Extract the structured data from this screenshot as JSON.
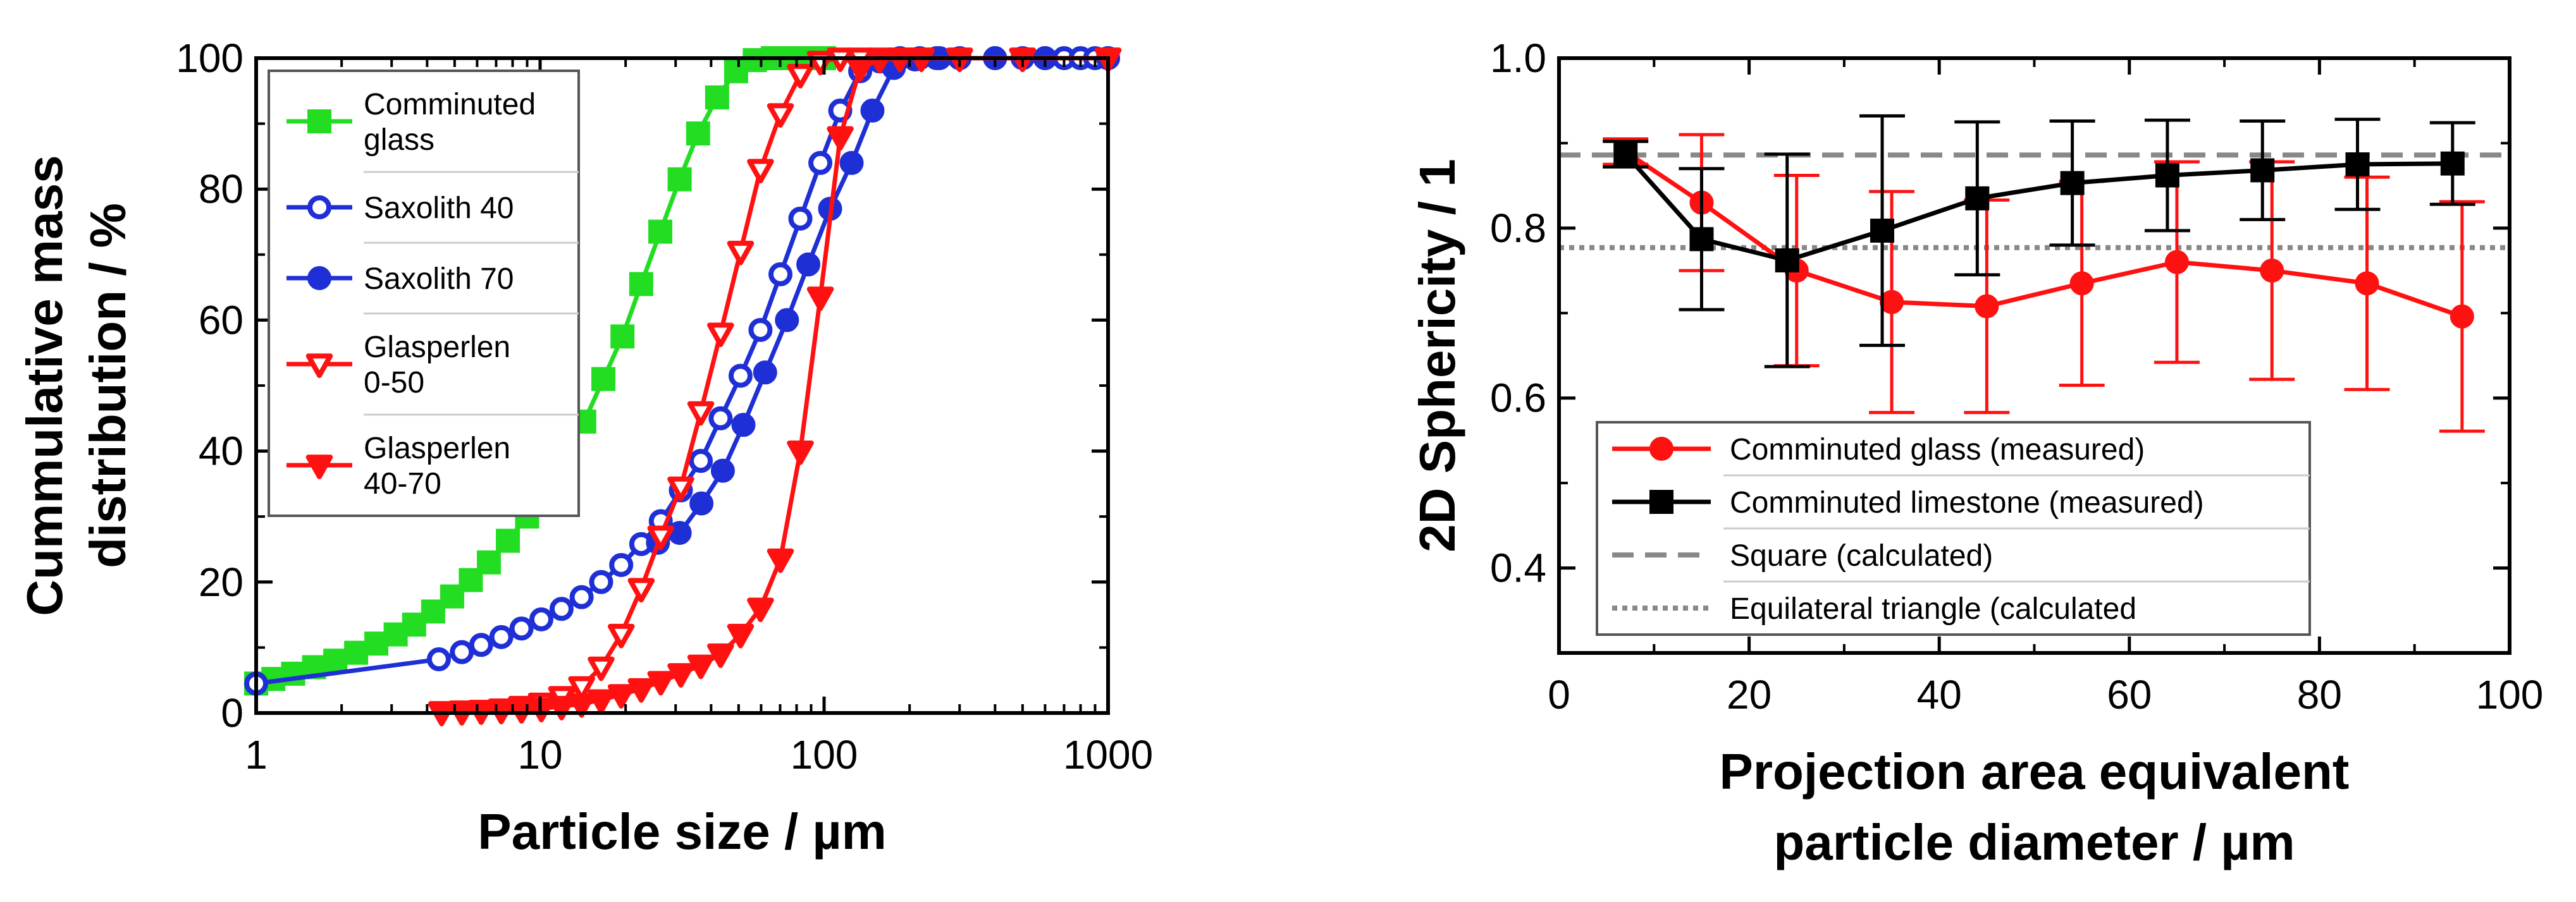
{
  "chart_data": [
    {
      "type": "line",
      "xscale": "log",
      "xlim": [
        1,
        1000
      ],
      "ylim": [
        0,
        100
      ],
      "xlabel": "Particle size / µm",
      "ylabel_lines": [
        "Cummulative mass",
        "distribution / %"
      ],
      "x_ticks": [
        1,
        10,
        100,
        1000
      ],
      "x_tick_labels": [
        "1",
        "10",
        "100",
        "1000"
      ],
      "y_ticks": [
        0,
        20,
        40,
        60,
        80,
        100
      ],
      "y_tick_labels": [
        "0",
        "20",
        "40",
        "60",
        "80",
        "100"
      ],
      "grid": false,
      "legend_position": "top-left",
      "series": [
        {
          "name_lines": [
            "Comminuted",
            "glass"
          ],
          "color": "#22dd22",
          "marker": "square",
          "filled": true,
          "x": [
            1,
            1.15,
            1.35,
            1.6,
            1.9,
            2.25,
            2.65,
            3.1,
            3.6,
            4.2,
            4.9,
            5.7,
            6.6,
            7.7,
            9,
            10.5,
            12.3,
            14.3,
            16.7,
            19.5,
            22.7,
            26.5,
            31,
            36,
            42,
            49,
            57,
            66,
            77,
            90,
            100
          ],
          "y": [
            4.5,
            5.2,
            6,
            7,
            8,
            9.2,
            10.6,
            12,
            13.5,
            15.5,
            17.8,
            20.3,
            23,
            26.3,
            30,
            34.5,
            39.5,
            44.5,
            51,
            57.5,
            65.5,
            73.5,
            81.5,
            88.5,
            94,
            98,
            99.7,
            100,
            100,
            100,
            100
          ]
        },
        {
          "name_lines": [
            "Saxolith 40"
          ],
          "color": "#1f2fd6",
          "marker": "circle",
          "filled": false,
          "x": [
            1,
            4.4,
            5.3,
            6.2,
            7.3,
            8.6,
            10.1,
            11.9,
            14,
            16.4,
            19.3,
            22.7,
            26.6,
            31.3,
            36.8,
            43.2,
            50.8,
            59.7,
            70.2,
            82.5,
            97,
            114,
            134,
            157,
            185,
            217,
            255,
            300,
            400,
            500,
            600,
            700,
            800,
            900,
            1000
          ],
          "y": [
            4.5,
            8.2,
            9.3,
            10.4,
            11.6,
            12.9,
            14.3,
            15.9,
            17.7,
            20,
            22.6,
            25.8,
            29.3,
            34,
            38.5,
            45,
            51.5,
            58.5,
            67,
            75.5,
            84,
            92,
            98,
            99.5,
            100,
            100,
            100,
            100,
            100,
            100,
            100,
            100,
            100,
            100,
            100
          ]
        },
        {
          "name_lines": [
            "Saxolith 70"
          ],
          "color": "#1f2fd6",
          "marker": "circle",
          "filled": true,
          "x": [
            26,
            31,
            37,
            44,
            52,
            62,
            74,
            88,
            105,
            125,
            148,
            176,
            209,
            249,
            400,
            600,
            1000
          ],
          "y": [
            26,
            27.5,
            32,
            37,
            44,
            52,
            60,
            68.5,
            77,
            84,
            92,
            98.5,
            99.8,
            100,
            100,
            100,
            100
          ]
        },
        {
          "name_lines": [
            "Glasperlen",
            "0-50"
          ],
          "color": "#ff1111",
          "marker": "triangle-down",
          "filled": false,
          "x": [
            4.5,
            5.3,
            6.2,
            7.3,
            8.6,
            10.1,
            11.9,
            14,
            16.4,
            19.3,
            22.7,
            26.6,
            31.3,
            36.8,
            43.2,
            50.8,
            59.7,
            70.2,
            82.5,
            97,
            114,
            134,
            157,
            185,
            220,
            300,
            500,
            1000
          ],
          "y": [
            0.2,
            0.3,
            0.4,
            0.6,
            1,
            1.5,
            2.5,
            4,
            7,
            12,
            19,
            27,
            34.5,
            46,
            58,
            70.5,
            83,
            91.5,
            97.5,
            99.5,
            100,
            100,
            100,
            100,
            100,
            100,
            100,
            100
          ]
        },
        {
          "name_lines": [
            "Glasperlen",
            "40-70"
          ],
          "color": "#ff1111",
          "marker": "triangle-down",
          "filled": true,
          "x": [
            4.5,
            5.3,
            6.2,
            7.3,
            8.6,
            10.1,
            11.9,
            14,
            16.4,
            19.3,
            22.7,
            26.6,
            31.3,
            36.8,
            43.2,
            50.8,
            59.7,
            70.2,
            82.5,
            97,
            114,
            134,
            157,
            185,
            220,
            300,
            500,
            1000
          ],
          "y": [
            0.1,
            0.2,
            0.3,
            0.4,
            0.5,
            0.7,
            1,
            1.4,
            2,
            2.8,
            3.7,
            4.8,
            6,
            7.3,
            9,
            12,
            16,
            23.5,
            40,
            63.5,
            88,
            98.5,
            99.8,
            100,
            100,
            100,
            100,
            100
          ]
        }
      ]
    },
    {
      "type": "line",
      "xlim": [
        0,
        100
      ],
      "ylim": [
        0.3,
        1.0
      ],
      "xlabel_lines": [
        "Projection area equivalent",
        "particle diameter / µm"
      ],
      "ylabel": "2D Sphericity / 1",
      "x_ticks": [
        0,
        20,
        40,
        60,
        80,
        100
      ],
      "x_tick_labels": [
        "0",
        "20",
        "40",
        "60",
        "80",
        "100"
      ],
      "y_ticks": [
        0.4,
        0.6,
        0.8,
        1.0
      ],
      "y_tick_labels": [
        "0.4",
        "0.6",
        "0.8",
        "1.0"
      ],
      "grid": false,
      "legend_position": "bottom-center",
      "series": [
        {
          "name": "Comminuted glass (measured)",
          "color": "#ff1111",
          "marker": "circle",
          "filled": true,
          "x": [
            7,
            15,
            25,
            35,
            45,
            55,
            65,
            75,
            85,
            95
          ],
          "y": [
            0.89,
            0.83,
            0.75,
            0.713,
            0.708,
            0.735,
            0.76,
            0.75,
            0.735,
            0.696
          ],
          "err": [
            0.015,
            0.08,
            0.112,
            0.13,
            0.125,
            0.12,
            0.118,
            0.128,
            0.125,
            0.135
          ]
        },
        {
          "name": "Comminuted limestone (measured)",
          "color": "#000000",
          "marker": "square",
          "filled": true,
          "x": [
            7,
            15,
            24,
            34,
            44,
            54,
            64,
            74,
            84,
            94
          ],
          "y": [
            0.887,
            0.787,
            0.762,
            0.797,
            0.835,
            0.853,
            0.862,
            0.868,
            0.875,
            0.876
          ],
          "err": [
            0.015,
            0.083,
            0.125,
            0.135,
            0.09,
            0.073,
            0.065,
            0.058,
            0.053,
            0.048
          ]
        },
        {
          "name": "Square (calculated)",
          "color": "#888888",
          "style": "dashed",
          "y_const": 0.886
        },
        {
          "name": "Equilateral triangle (calculated",
          "color": "#888888",
          "style": "dotted",
          "y_const": 0.777
        }
      ]
    }
  ]
}
